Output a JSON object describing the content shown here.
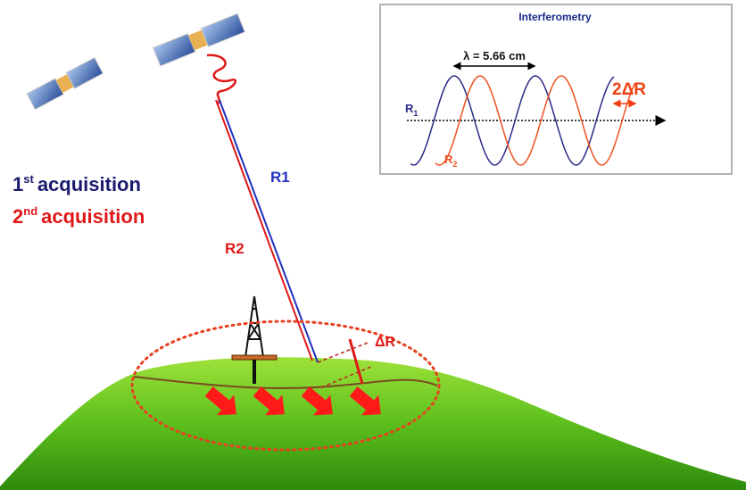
{
  "inset": {
    "title": "Interferometry",
    "wavelength": "λ = 5.66 cm",
    "shift": "2ΔR",
    "r1": {
      "base": "R",
      "sub": "1"
    },
    "r2": {
      "base": "R",
      "sub": "2"
    }
  },
  "legend": [
    {
      "num": "1",
      "sup": "st",
      "text": "acquisition"
    },
    {
      "num": "2",
      "sup": "nd",
      "text": "acquisition"
    }
  ],
  "paths": {
    "r1": "R1",
    "r2": "R2"
  },
  "ground": {
    "delta": "ΔR"
  }
}
